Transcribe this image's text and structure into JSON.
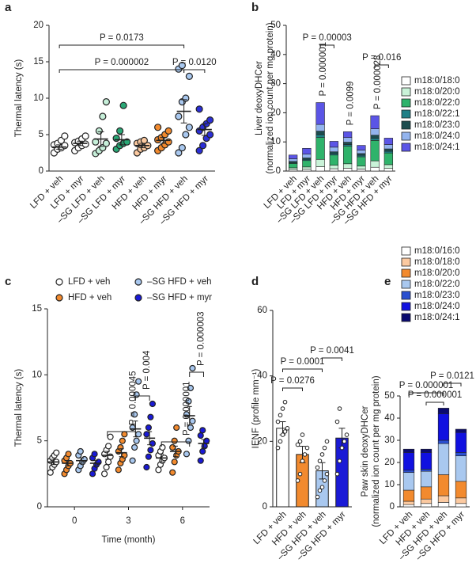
{
  "chart_data": [
    {
      "type": "strip",
      "label": "a",
      "ylabel": "Thermal latency (s)",
      "categories": [
        "LFD + veh",
        "LFD + myr",
        "–SG LFD + veh",
        "–SG LFD + myr",
        "HFD + veh",
        "HFD + myr",
        "–SG HFD + veh",
        "–SG HFD + myr"
      ],
      "colors": [
        "#ffffff",
        "#ffffff",
        "#c6efd9",
        "#2aa876",
        "#fbc9a0",
        "#f28a2e",
        "#a9c8ef",
        "#2b2fd6"
      ],
      "values": [
        3.3,
        3.8,
        4.4,
        4.3,
        3.5,
        4.2,
        8.2,
        5.7
      ],
      "errors": [
        0.3,
        0.3,
        1.0,
        0.7,
        0.3,
        0.4,
        1.6,
        0.8
      ],
      "points": [
        [
          2.5,
          3,
          3.2,
          3.5,
          3.6,
          3.8,
          4.2,
          4.8
        ],
        [
          2.8,
          3.2,
          3.5,
          3.7,
          3.9,
          4.1,
          4.4,
          4.8
        ],
        [
          2.4,
          2.8,
          3.2,
          3.8,
          4,
          5.5,
          7.5,
          9.5
        ],
        [
          3,
          3.5,
          3.8,
          4,
          4.5,
          5.5,
          9
        ],
        [
          2.5,
          3,
          3.2,
          3.5,
          3.8,
          4,
          4.2
        ],
        [
          2.8,
          3.2,
          3.6,
          4,
          4.3,
          4.6,
          5,
          5.5,
          6
        ],
        [
          2.5,
          3.2,
          5,
          6,
          7.5,
          9.5,
          10,
          13,
          14,
          14.5
        ],
        [
          2.8,
          3.5,
          4.5,
          5,
          5.5,
          6,
          6.5,
          7,
          8.5
        ]
      ],
      "ylim": [
        0,
        20
      ],
      "yticks": [
        0,
        5,
        10,
        15,
        20
      ],
      "annotations": [
        {
          "text": "P = 0.0173",
          "from": 0,
          "to": 6
        },
        {
          "text": "P = 0.000002",
          "from": 0,
          "to": 6
        },
        {
          "text": "P = 0.0120",
          "from": 6,
          "to": 7
        }
      ]
    },
    {
      "type": "stacked_bar",
      "label": "b",
      "ylabel": [
        "Liver deoxyDHCer",
        "(normalized ion count per mg protein)"
      ],
      "categories": [
        "LFD + veh",
        "LFD + myr",
        "–SG LFD + veh",
        "–SG LFD + myr",
        "HFD + veh",
        "HFD + myr",
        "–SG HFD + veh",
        "–SG HFD + myr"
      ],
      "series": [
        {
          "name": "m18:0/18:0",
          "color": "#ffffff",
          "values": [
            0.5,
            0.6,
            1.5,
            0.8,
            1.0,
            0.7,
            1.3,
            0.9
          ]
        },
        {
          "name": "m18:0/20:0",
          "color": "#c9f2d8",
          "values": [
            0.6,
            0.8,
            2.5,
            1.2,
            1.5,
            1.0,
            2.2,
            1.3
          ]
        },
        {
          "name": "m18:0/22:0",
          "color": "#2fb36b",
          "values": [
            1.5,
            2.2,
            7.5,
            3.5,
            6.0,
            3.2,
            7.0,
            4.0
          ]
        },
        {
          "name": "m18:0/22:1",
          "color": "#1f7f86",
          "values": [
            0.3,
            0.4,
            1.0,
            0.5,
            0.6,
            0.5,
            0.8,
            0.6
          ]
        },
        {
          "name": "m18:0/23:0",
          "color": "#1d4d4f",
          "values": [
            0.4,
            0.5,
            1.2,
            0.6,
            0.8,
            0.6,
            1.0,
            0.8
          ]
        },
        {
          "name": "m18:0/24:0",
          "color": "#93b4ee",
          "values": [
            0.9,
            1.3,
            2.3,
            1.6,
            1.6,
            1.2,
            2.2,
            1.5
          ]
        },
        {
          "name": "m18:0/24:1",
          "color": "#5b55e6",
          "values": [
            1.3,
            2.0,
            7.5,
            2.0,
            2.0,
            1.6,
            4.5,
            2.2
          ]
        }
      ],
      "ylim": [
        0,
        50
      ],
      "yticks": [
        0,
        10,
        20,
        30,
        40,
        50
      ],
      "annotations": [
        {
          "text": "P = 0.00003",
          "from": 2,
          "to": 3
        },
        {
          "text": "P = 0.016",
          "from": 6,
          "to": 7
        },
        {
          "text": "P = 0.000001",
          "at": 2
        },
        {
          "text": "P = 0.0099",
          "at": 4
        },
        {
          "text": "P = 0.000028",
          "at": 6
        }
      ]
    },
    {
      "type": "grouped_strip",
      "label": "c",
      "ylabel": "Thermal latency (s)",
      "xlabel": "Time (month)",
      "categories": [
        "0",
        "3",
        "6"
      ],
      "series": [
        {
          "name": "LFD + veh",
          "color": "#ffffff",
          "values": [
            3.4,
            3.9,
            3.7
          ],
          "errors": [
            0.2,
            0.3,
            0.3
          ],
          "points": [
            [
              2.6,
              3,
              3.2,
              3.4,
              3.5,
              3.7,
              3.9,
              4.1
            ],
            [
              2.5,
              3,
              3.4,
              3.8,
              4,
              4.3,
              4.6,
              5.3
            ],
            [
              2.8,
              3.2,
              3.5,
              3.7,
              3.9,
              4.2,
              4.5
            ]
          ]
        },
        {
          "name": "HFD + veh",
          "color": "#f28a2e",
          "values": [
            3.3,
            4.1,
            4.2
          ],
          "errors": [
            0.2,
            0.3,
            0.4
          ],
          "points": [
            [
              2.5,
              2.8,
              3.1,
              3.3,
              3.5,
              3.7,
              4
            ],
            [
              2.8,
              3.3,
              3.6,
              3.9,
              4.2,
              4.5,
              5,
              5.5
            ],
            [
              2.6,
              3.4,
              3.9,
              4.2,
              4.5,
              5,
              6
            ]
          ]
        },
        {
          "name": "–SG HFD + veh",
          "color": "#a9c8ef",
          "values": [
            3.5,
            5.9,
            6.9
          ],
          "errors": [
            0.2,
            0.6,
            0.7
          ],
          "points": [
            [
              2.8,
              3.1,
              3.4,
              3.6,
              3.9,
              4.2
            ],
            [
              3.5,
              4.5,
              5,
              5.5,
              6,
              7,
              8.5,
              9.5
            ],
            [
              4,
              5,
              6,
              6.5,
              7,
              8,
              9,
              10.5
            ]
          ]
        },
        {
          "name": "–SG HFD + myr",
          "color": "#1a1ad6",
          "values": [
            3.3,
            5.2,
            4.8
          ],
          "errors": [
            0.2,
            0.5,
            0.3
          ],
          "points": [
            [
              2.5,
              2.9,
              3.2,
              3.4,
              3.7,
              4
            ],
            [
              3,
              3.8,
              4.3,
              4.8,
              5.5,
              6,
              6.8,
              7.8
            ],
            [
              3.5,
              4.2,
              4.6,
              5,
              5.4,
              5.8
            ]
          ]
        }
      ],
      "ylim": [
        0,
        15
      ],
      "yticks": [
        0,
        5,
        10,
        15
      ],
      "annotations": [
        {
          "text": "P = 0.000045",
          "at": 1,
          "from": 0,
          "to": 2
        },
        {
          "text": "P = 0.004",
          "at": 1,
          "from": 2,
          "to": 3
        },
        {
          "text": "P = 0.000001",
          "at": 2,
          "from": 0,
          "to": 2
        },
        {
          "text": "P = 0.000003",
          "at": 2,
          "from": 2,
          "to": 3
        }
      ]
    },
    {
      "type": "bar",
      "label": "d",
      "ylabel": "IENF (profile mm⁻¹)",
      "categories": [
        "LFD + veh",
        "HFD + veh",
        "–SG HFD + veh",
        "–SG HFD + myr"
      ],
      "colors": [
        "#ffffff",
        "#f28a2e",
        "#a9c8ef",
        "#1a1ad6"
      ],
      "values": [
        24,
        16,
        11,
        21
      ],
      "errors": [
        2,
        2.5,
        2.5,
        3
      ],
      "points": [
        [
          18,
          20,
          22,
          23,
          24,
          26,
          28,
          30,
          32
        ],
        [
          8,
          10,
          14,
          16,
          18,
          19,
          20,
          22
        ],
        [
          3,
          5,
          6,
          8,
          10,
          12,
          14,
          16,
          18,
          20
        ],
        [
          10,
          14,
          18,
          20,
          22,
          26,
          30
        ]
      ],
      "ylim": [
        0,
        60
      ],
      "yticks": [
        0,
        20,
        40,
        60
      ],
      "annotations": [
        {
          "text": "P = 0.0041",
          "from": 2,
          "to": 3
        },
        {
          "text": "P = 0.0001",
          "from": 0,
          "to": 2
        },
        {
          "text": "P = 0.0276",
          "from": 0,
          "to": 1
        }
      ]
    },
    {
      "type": "stacked_bar",
      "label": "e",
      "ylabel": [
        "Paw skin deoxyDHCer",
        "(normalized ion count per mg protein)"
      ],
      "categories": [
        "LFD + veh",
        "HFD + veh",
        "–SG HFD + veh",
        "–SG HFD + myr"
      ],
      "series": [
        {
          "name": "m18:0/16:0",
          "color": "#ffffff",
          "values": [
            1,
            1.5,
            2,
            1.5
          ]
        },
        {
          "name": "m18:0/18:0",
          "color": "#fbc9a0",
          "values": [
            1.5,
            2,
            3,
            2.5
          ]
        },
        {
          "name": "m18:0/20:0",
          "color": "#f28a2e",
          "values": [
            5,
            5.5,
            9.5,
            7.5
          ]
        },
        {
          "name": "m18:0/22:0",
          "color": "#a9c8ef",
          "values": [
            8,
            7,
            14,
            11.5
          ]
        },
        {
          "name": "m18:0/23:0",
          "color": "#2a4fd0",
          "values": [
            1,
            1,
            1.5,
            1.5
          ]
        },
        {
          "name": "m18:0/24:0",
          "color": "#1010e0",
          "values": [
            8,
            7.5,
            12,
            9
          ]
        },
        {
          "name": "m18:0/24:1",
          "color": "#0a0a70",
          "values": [
            1.5,
            1.5,
            2.5,
            1.5
          ]
        }
      ],
      "ylim": [
        0,
        50
      ],
      "yticks": [
        0,
        10,
        20,
        30,
        40,
        50
      ],
      "annotations": [
        {
          "text": "P = 0.0121",
          "from": 2,
          "to": 3
        },
        {
          "text": "P = 0.000001",
          "from": 0,
          "to": 2
        },
        {
          "text": "P = 0.000001",
          "from": 1,
          "to": 2
        }
      ]
    }
  ]
}
